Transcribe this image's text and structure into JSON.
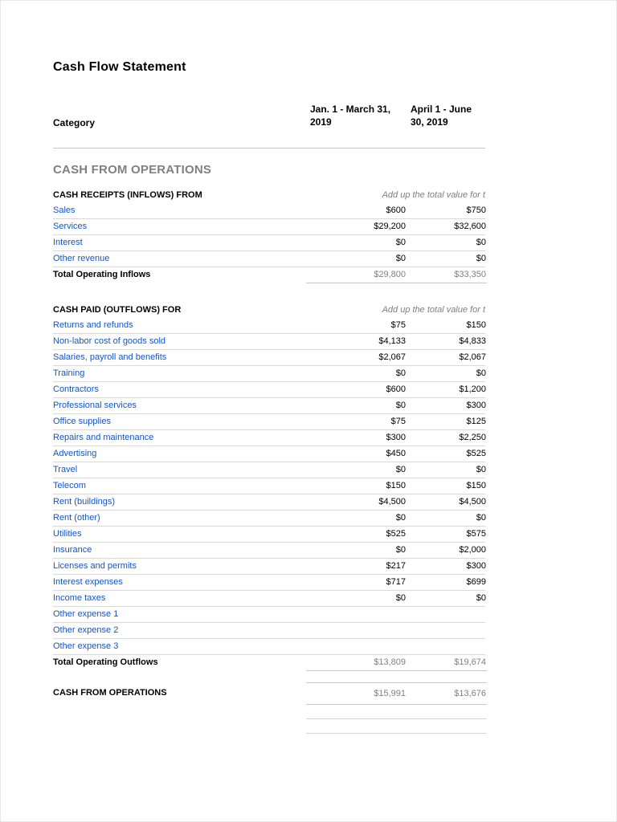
{
  "document": {
    "title": "Cash Flow Statement"
  },
  "colors": {
    "link_blue": "#1155cc",
    "muted_gray": "#808080",
    "row_line": "#dadada"
  },
  "table": {
    "header": {
      "category_label": "Category",
      "period_1": "Jan. 1 - March 31, 2019",
      "period_2": "April 1 - June 30, 2019"
    },
    "section_title": "CASH FROM OPERATIONS",
    "inflows": {
      "heading": "CASH RECEIPTS (INFLOWS) FROM",
      "note": "Add up the total value for t",
      "rows": [
        {
          "label": "Sales",
          "p1": "$600",
          "p2": "$750"
        },
        {
          "label": "Services",
          "p1": "$29,200",
          "p2": "$32,600"
        },
        {
          "label": "Interest",
          "p1": "$0",
          "p2": "$0"
        },
        {
          "label": "Other revenue",
          "p1": "$0",
          "p2": "$0"
        }
      ],
      "total": {
        "label": "Total Operating Inflows",
        "p1": "$29,800",
        "p2": "$33,350"
      }
    },
    "outflows": {
      "heading": "CASH PAID (OUTFLOWS) FOR",
      "note": "Add up the total value for t",
      "rows": [
        {
          "label": "Returns and refunds",
          "p1": "$75",
          "p2": "$150"
        },
        {
          "label": "Non-labor cost of goods sold",
          "p1": "$4,133",
          "p2": "$4,833"
        },
        {
          "label": "Salaries, payroll and benefits",
          "p1": "$2,067",
          "p2": "$2,067"
        },
        {
          "label": "Training",
          "p1": "$0",
          "p2": "$0"
        },
        {
          "label": "Contractors",
          "p1": "$600",
          "p2": "$1,200"
        },
        {
          "label": "Professional services",
          "p1": "$0",
          "p2": "$300"
        },
        {
          "label": "Office supplies",
          "p1": "$75",
          "p2": "$125"
        },
        {
          "label": "Repairs and maintenance",
          "p1": "$300",
          "p2": "$2,250"
        },
        {
          "label": "Advertising",
          "p1": "$450",
          "p2": "$525"
        },
        {
          "label": "Travel",
          "p1": "$0",
          "p2": "$0"
        },
        {
          "label": "Telecom",
          "p1": "$150",
          "p2": "$150"
        },
        {
          "label": "Rent (buildings)",
          "p1": "$4,500",
          "p2": "$4,500"
        },
        {
          "label": "Rent (other)",
          "p1": "$0",
          "p2": "$0"
        },
        {
          "label": "Utilities",
          "p1": "$525",
          "p2": "$575"
        },
        {
          "label": "Insurance",
          "p1": "$0",
          "p2": "$2,000"
        },
        {
          "label": "Licenses and permits",
          "p1": "$217",
          "p2": "$300"
        },
        {
          "label": "Interest expenses",
          "p1": "$717",
          "p2": "$699"
        },
        {
          "label": "Income taxes",
          "p1": "$0",
          "p2": "$0"
        },
        {
          "label": "Other expense 1",
          "p1": "",
          "p2": ""
        },
        {
          "label": "Other expense 2",
          "p1": "",
          "p2": ""
        },
        {
          "label": "Other expense 3",
          "p1": "",
          "p2": ""
        }
      ],
      "total": {
        "label": "Total Operating Outflows",
        "p1": "$13,809",
        "p2": "$19,674"
      }
    },
    "summary": {
      "label": "CASH FROM OPERATIONS",
      "p1": "$15,991",
      "p2": "$13,676"
    }
  }
}
